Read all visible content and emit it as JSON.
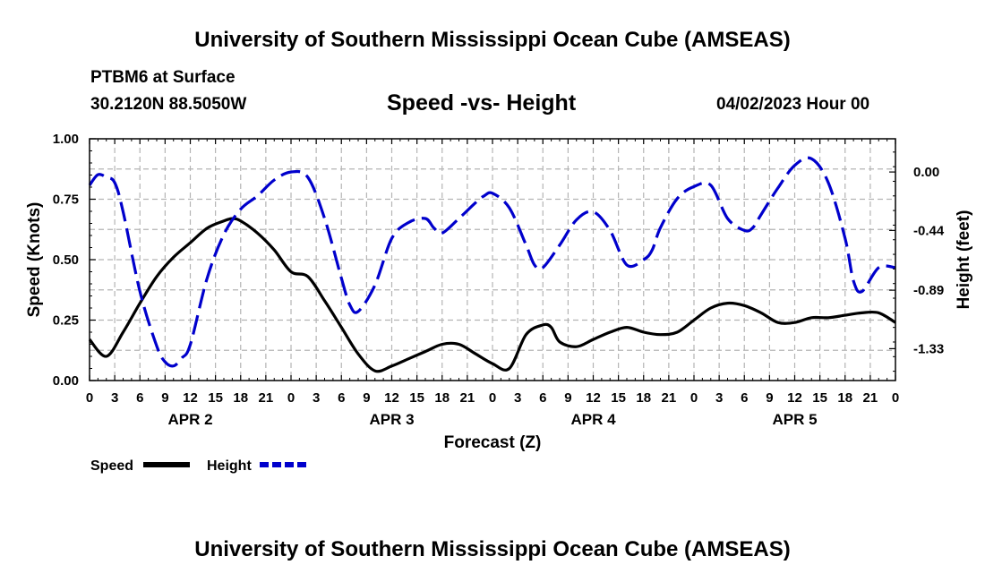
{
  "header": {
    "title": "University of Southern Mississippi Ocean Cube (AMSEAS)",
    "station": "PTBM6 at Surface",
    "coords": "30.2120N  88.5050W",
    "chart_title": "Speed -vs- Height",
    "date_label": "04/02/2023 Hour 00"
  },
  "footer": {
    "title": "University of Southern Mississippi Ocean Cube (AMSEAS)"
  },
  "colors": {
    "speed": "#000000",
    "height": "#0000cc",
    "grid": "#b4b4b4"
  },
  "chart_data": {
    "type": "line",
    "title": "Speed -vs- Height",
    "xlabel": "Forecast (Z)",
    "ylabel": "Speed (Knots)",
    "y2label": "Height (feet)",
    "x_range_hours": [
      0,
      96
    ],
    "ylim": [
      0,
      1.0
    ],
    "y2lim": [
      -1.57,
      0.25
    ],
    "x_tick_labels": [
      "0",
      "3",
      "6",
      "9",
      "12",
      "15",
      "18",
      "21",
      "0",
      "3",
      "6",
      "9",
      "12",
      "15",
      "18",
      "21",
      "0",
      "3",
      "6",
      "9",
      "12",
      "15",
      "18",
      "21",
      "0",
      "3",
      "6",
      "9",
      "12",
      "15",
      "18",
      "21",
      "0"
    ],
    "date_labels": [
      {
        "label": "APR 2",
        "hour": 12
      },
      {
        "label": "APR 3",
        "hour": 36
      },
      {
        "label": "APR 4",
        "hour": 60
      },
      {
        "label": "APR 5",
        "hour": 84
      }
    ],
    "y_ticks": [
      "0.00",
      "0.25",
      "0.50",
      "0.75",
      "1.00"
    ],
    "y2_ticks": [
      "0.00",
      "-0.44",
      "-0.89",
      "-1.33"
    ],
    "grid": true,
    "legend_position": "bottom-left",
    "series": [
      {
        "name": "Speed",
        "axis": "left",
        "style": "solid",
        "x": [
          0,
          2,
          4,
          6,
          8,
          10,
          12,
          14,
          16,
          17,
          18,
          20,
          22,
          24,
          26,
          28,
          30,
          32,
          34,
          36,
          38,
          40,
          42,
          44,
          46,
          48,
          50,
          52,
          54,
          55,
          56,
          58,
          60,
          62,
          64,
          66,
          68,
          70,
          72,
          74,
          76,
          78,
          80,
          82,
          84,
          86,
          88,
          90,
          92,
          94,
          96
        ],
        "values": [
          0.17,
          0.1,
          0.2,
          0.32,
          0.43,
          0.51,
          0.57,
          0.63,
          0.66,
          0.67,
          0.66,
          0.61,
          0.54,
          0.45,
          0.43,
          0.33,
          0.22,
          0.11,
          0.04,
          0.06,
          0.09,
          0.12,
          0.15,
          0.15,
          0.11,
          0.07,
          0.05,
          0.19,
          0.23,
          0.22,
          0.16,
          0.14,
          0.17,
          0.2,
          0.22,
          0.2,
          0.19,
          0.2,
          0.25,
          0.3,
          0.32,
          0.31,
          0.28,
          0.24,
          0.24,
          0.26,
          0.26,
          0.27,
          0.28,
          0.28,
          0.24
        ]
      },
      {
        "name": "Height",
        "axis": "right",
        "style": "dashed",
        "x": [
          0,
          1,
          2,
          3,
          4,
          6,
          8,
          9,
          10,
          11,
          12,
          14,
          16,
          18,
          20,
          22,
          24,
          26,
          28,
          30,
          31,
          32,
          34,
          36,
          38,
          40,
          41,
          42,
          44,
          46,
          47,
          48,
          50,
          52,
          53,
          54,
          56,
          58,
          60,
          62,
          64,
          66,
          67,
          68,
          70,
          72,
          74,
          76,
          78,
          79,
          80,
          82,
          84,
          86,
          88,
          90,
          91,
          92,
          94,
          96
        ],
        "values": [
          -0.1,
          -0.02,
          -0.04,
          -0.08,
          -0.3,
          -0.9,
          -1.31,
          -1.43,
          -1.46,
          -1.4,
          -1.3,
          -0.8,
          -0.47,
          -0.28,
          -0.18,
          -0.06,
          0.0,
          -0.04,
          -0.35,
          -0.8,
          -1.0,
          -1.05,
          -0.85,
          -0.5,
          -0.38,
          -0.35,
          -0.42,
          -0.46,
          -0.35,
          -0.23,
          -0.18,
          -0.16,
          -0.27,
          -0.55,
          -0.7,
          -0.72,
          -0.55,
          -0.36,
          -0.3,
          -0.44,
          -0.7,
          -0.66,
          -0.59,
          -0.42,
          -0.2,
          -0.11,
          -0.1,
          -0.35,
          -0.44,
          -0.42,
          -0.32,
          -0.12,
          0.05,
          0.1,
          -0.08,
          -0.5,
          -0.82,
          -0.9,
          -0.72,
          -0.72
        ]
      }
    ]
  }
}
